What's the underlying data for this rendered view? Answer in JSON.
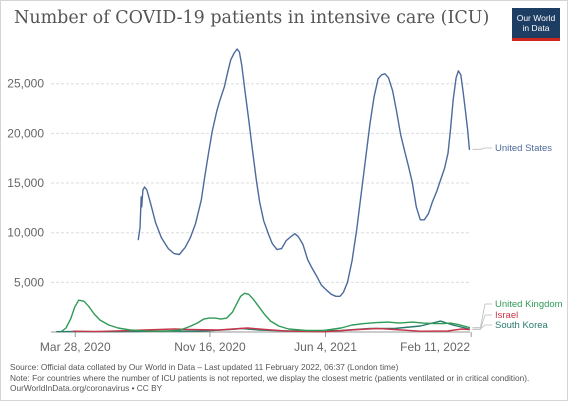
{
  "title": "Number of COVID-19 patients in intensive care (ICU)",
  "logo": {
    "line1": "Our World",
    "line2": "in Data"
  },
  "footer": {
    "source": "Source: Official data collated by Our World in Data – Last updated 11 February 2022, 06:37 (London time)",
    "note": "Note: For countries where the number of ICU patients is not reported, we display the closest metric (patients ventilated or in critical condition).",
    "credit": "OurWorldInData.org/coronavirus • CC BY"
  },
  "chart_data": {
    "type": "line",
    "title": "Number of COVID-19 patients in intensive care (ICU)",
    "xlabel": "",
    "ylabel": "",
    "xlim": [
      "2020-02-15",
      "2022-02-09"
    ],
    "ylim": [
      0,
      28700
    ],
    "grid": true,
    "legend": "right",
    "x_ticks": [
      {
        "date": "2020-03-28",
        "label": "Mar 28, 2020"
      },
      {
        "date": "2020-11-16",
        "label": "Nov 16, 2020"
      },
      {
        "date": "2021-06-04",
        "label": "Jun 4, 2021"
      },
      {
        "date": "2022-02-11",
        "label": "Feb 11, 2022"
      }
    ],
    "y_ticks": [
      {
        "value": 5000,
        "label": "5,000"
      },
      {
        "value": 10000,
        "label": "10,000"
      },
      {
        "value": 15000,
        "label": "15,000"
      },
      {
        "value": 20000,
        "label": "20,000"
      },
      {
        "value": 25000,
        "label": "25,000"
      }
    ],
    "series": [
      {
        "name": "United States",
        "color": "#4c6a9c",
        "points": [
          [
            "2020-07-15",
            9300
          ],
          [
            "2020-07-18",
            10500
          ],
          [
            "2020-07-20",
            13600
          ],
          [
            "2020-07-21",
            12600
          ],
          [
            "2020-07-23",
            14300
          ],
          [
            "2020-07-26",
            14600
          ],
          [
            "2020-07-30",
            14300
          ],
          [
            "2020-08-06",
            12800
          ],
          [
            "2020-08-14",
            11000
          ],
          [
            "2020-08-24",
            9500
          ],
          [
            "2020-09-05",
            8400
          ],
          [
            "2020-09-15",
            7900
          ],
          [
            "2020-09-24",
            7800
          ],
          [
            "2020-10-04",
            8500
          ],
          [
            "2020-10-13",
            9500
          ],
          [
            "2020-10-22",
            10900
          ],
          [
            "2020-11-01",
            13300
          ],
          [
            "2020-11-07",
            15600
          ],
          [
            "2020-11-13",
            17800
          ],
          [
            "2020-11-20",
            20200
          ],
          [
            "2020-11-28",
            22300
          ],
          [
            "2020-12-03",
            23300
          ],
          [
            "2020-12-11",
            24700
          ],
          [
            "2020-12-16",
            26000
          ],
          [
            "2020-12-22",
            27400
          ],
          [
            "2020-12-28",
            28100
          ],
          [
            "2021-01-02",
            28500
          ],
          [
            "2021-01-06",
            28200
          ],
          [
            "2021-01-10",
            26900
          ],
          [
            "2021-01-16",
            24100
          ],
          [
            "2021-01-22",
            21400
          ],
          [
            "2021-01-28",
            18600
          ],
          [
            "2021-02-04",
            15400
          ],
          [
            "2021-02-10",
            13100
          ],
          [
            "2021-02-17",
            11200
          ],
          [
            "2021-02-25",
            9900
          ],
          [
            "2021-03-04",
            8900
          ],
          [
            "2021-03-12",
            8300
          ],
          [
            "2021-03-20",
            8400
          ],
          [
            "2021-03-28",
            9200
          ],
          [
            "2021-04-05",
            9600
          ],
          [
            "2021-04-12",
            9900
          ],
          [
            "2021-04-18",
            9600
          ],
          [
            "2021-04-26",
            8800
          ],
          [
            "2021-05-04",
            7300
          ],
          [
            "2021-05-12",
            6400
          ],
          [
            "2021-05-20",
            5600
          ],
          [
            "2021-05-28",
            4700
          ],
          [
            "2021-06-06",
            4200
          ],
          [
            "2021-06-14",
            3800
          ],
          [
            "2021-06-22",
            3600
          ],
          [
            "2021-06-29",
            3600
          ],
          [
            "2021-07-05",
            4000
          ],
          [
            "2021-07-12",
            5000
          ],
          [
            "2021-07-20",
            7200
          ],
          [
            "2021-07-28",
            10300
          ],
          [
            "2021-08-04",
            13600
          ],
          [
            "2021-08-12",
            17300
          ],
          [
            "2021-08-20",
            21000
          ],
          [
            "2021-08-27",
            23700
          ],
          [
            "2021-09-03",
            25500
          ],
          [
            "2021-09-09",
            25900
          ],
          [
            "2021-09-15",
            26000
          ],
          [
            "2021-09-21",
            25600
          ],
          [
            "2021-09-28",
            24300
          ],
          [
            "2021-10-05",
            22200
          ],
          [
            "2021-10-12",
            19900
          ],
          [
            "2021-10-19",
            18200
          ],
          [
            "2021-10-25",
            16800
          ],
          [
            "2021-11-01",
            15100
          ],
          [
            "2021-11-08",
            12600
          ],
          [
            "2021-11-15",
            11300
          ],
          [
            "2021-11-22",
            11300
          ],
          [
            "2021-11-29",
            11900
          ],
          [
            "2021-12-06",
            13100
          ],
          [
            "2021-12-13",
            14100
          ],
          [
            "2021-12-20",
            15300
          ],
          [
            "2021-12-27",
            16500
          ],
          [
            "2022-01-02",
            18000
          ],
          [
            "2022-01-06",
            20300
          ],
          [
            "2022-01-11",
            23400
          ],
          [
            "2022-01-16",
            25600
          ],
          [
            "2022-01-20",
            26300
          ],
          [
            "2022-01-24",
            25900
          ],
          [
            "2022-01-28",
            24200
          ],
          [
            "2022-02-01",
            22300
          ],
          [
            "2022-02-05",
            20300
          ],
          [
            "2022-02-08",
            18400
          ]
        ]
      },
      {
        "name": "United Kingdom",
        "color": "#2f9a56",
        "points": [
          [
            "2020-03-05",
            100
          ],
          [
            "2020-03-12",
            400
          ],
          [
            "2020-03-20",
            1300
          ],
          [
            "2020-03-27",
            2500
          ],
          [
            "2020-04-03",
            3200
          ],
          [
            "2020-04-12",
            3100
          ],
          [
            "2020-04-20",
            2600
          ],
          [
            "2020-04-30",
            1800
          ],
          [
            "2020-05-10",
            1200
          ],
          [
            "2020-05-25",
            700
          ],
          [
            "2020-06-10",
            400
          ],
          [
            "2020-07-01",
            200
          ],
          [
            "2020-08-01",
            80
          ],
          [
            "2020-09-01",
            80
          ],
          [
            "2020-09-25",
            200
          ],
          [
            "2020-10-10",
            500
          ],
          [
            "2020-10-25",
            900
          ],
          [
            "2020-11-05",
            1300
          ],
          [
            "2020-11-15",
            1400
          ],
          [
            "2020-11-25",
            1400
          ],
          [
            "2020-12-05",
            1300
          ],
          [
            "2020-12-15",
            1400
          ],
          [
            "2020-12-25",
            2000
          ],
          [
            "2021-01-01",
            2800
          ],
          [
            "2021-01-08",
            3600
          ],
          [
            "2021-01-15",
            3900
          ],
          [
            "2021-01-22",
            3800
          ],
          [
            "2021-01-30",
            3300
          ],
          [
            "2021-02-08",
            2600
          ],
          [
            "2021-02-18",
            1800
          ],
          [
            "2021-03-01",
            1100
          ],
          [
            "2021-03-15",
            600
          ],
          [
            "2021-04-01",
            300
          ],
          [
            "2021-05-01",
            150
          ],
          [
            "2021-06-01",
            150
          ],
          [
            "2021-07-01",
            400
          ],
          [
            "2021-07-20",
            700
          ],
          [
            "2021-08-10",
            850
          ],
          [
            "2021-09-01",
            950
          ],
          [
            "2021-09-20",
            1000
          ],
          [
            "2021-10-10",
            900
          ],
          [
            "2021-11-01",
            1000
          ],
          [
            "2021-11-20",
            900
          ],
          [
            "2021-12-10",
            850
          ],
          [
            "2021-12-25",
            850
          ],
          [
            "2022-01-06",
            900
          ],
          [
            "2022-01-20",
            750
          ],
          [
            "2022-02-08",
            450
          ]
        ]
      },
      {
        "name": "Israel",
        "color": "#c9364b",
        "points": [
          [
            "2020-03-25",
            80
          ],
          [
            "2020-05-01",
            40
          ],
          [
            "2020-07-01",
            150
          ],
          [
            "2020-09-15",
            300
          ],
          [
            "2020-10-10",
            250
          ],
          [
            "2020-12-01",
            200
          ],
          [
            "2021-01-20",
            400
          ],
          [
            "2021-02-20",
            250
          ],
          [
            "2021-04-01",
            80
          ],
          [
            "2021-06-01",
            20
          ],
          [
            "2021-08-01",
            250
          ],
          [
            "2021-09-01",
            350
          ],
          [
            "2021-10-01",
            250
          ],
          [
            "2021-11-15",
            80
          ],
          [
            "2022-01-01",
            100
          ],
          [
            "2022-01-26",
            300
          ],
          [
            "2022-02-08",
            250
          ]
        ]
      },
      {
        "name": "South Korea",
        "color": "#2a7a6d",
        "points": [
          [
            "2020-02-25",
            30
          ],
          [
            "2020-04-01",
            60
          ],
          [
            "2020-06-01",
            30
          ],
          [
            "2020-09-01",
            100
          ],
          [
            "2020-11-01",
            80
          ],
          [
            "2020-12-20",
            250
          ],
          [
            "2021-01-10",
            350
          ],
          [
            "2021-02-10",
            200
          ],
          [
            "2021-04-01",
            100
          ],
          [
            "2021-07-01",
            150
          ],
          [
            "2021-08-20",
            350
          ],
          [
            "2021-10-01",
            350
          ],
          [
            "2021-11-15",
            600
          ],
          [
            "2021-12-20",
            1100
          ],
          [
            "2022-01-10",
            700
          ],
          [
            "2022-02-08",
            300
          ]
        ]
      }
    ]
  },
  "legend_labels": [
    {
      "series": "United States",
      "text": "United States"
    },
    {
      "series": "United Kingdom",
      "text": "United Kingdom"
    },
    {
      "series": "Israel",
      "text": "Israel"
    },
    {
      "series": "South Korea",
      "text": "South Korea"
    }
  ]
}
